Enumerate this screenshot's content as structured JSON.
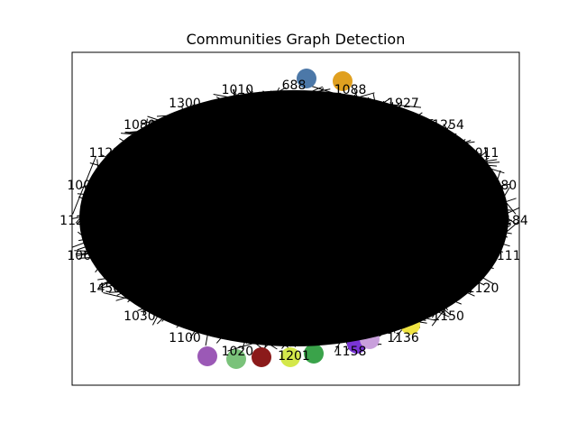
{
  "chart_data": {
    "type": "network-graph",
    "title": "Communities Graph Detection",
    "axes_frame": true,
    "ticks": false,
    "grid": false,
    "edge_color": "#000000",
    "node_label_color": "#000000",
    "community_colors": [
      "#4c78a8",
      "#7ac27a",
      "#8b1a1a",
      "#d4e84a",
      "#7a35d6",
      "#c9a0dc",
      "#e0a020",
      "#3aa34a",
      "#9b59b6",
      "#f0e442"
    ],
    "visible_node_labels": [
      "688",
      "1088",
      "1927",
      "1254",
      "1011",
      "880",
      "1184",
      "1111",
      "1120",
      "1150",
      "1136",
      "1158",
      "1201",
      "1020",
      "1100",
      "1030",
      "1450",
      "1060",
      "1120",
      "1000",
      "1122",
      "1080",
      "1300",
      "1010"
    ]
  }
}
